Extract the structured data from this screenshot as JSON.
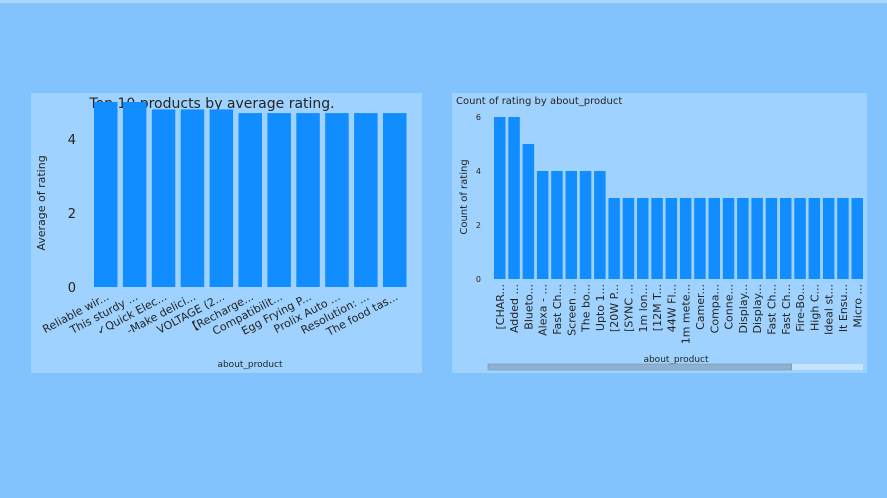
{
  "chart_data": [
    {
      "type": "bar",
      "title": "Top 10 products by average rating.",
      "xlabel": "about_product",
      "ylabel": "Average of rating",
      "ylim": [
        0,
        5
      ],
      "yticks": [
        "0",
        "2",
        "4"
      ],
      "categories": [
        "Reliable wir...",
        "This sturdy ...",
        "✓Quick Elec...",
        "-Make delici...",
        "VOLTAGE (2...",
        "【Recharge...",
        "Compatibilit...",
        "Egg Frying P...",
        "Prolix Auto ...",
        "Resolution: ...",
        "The food tas..."
      ],
      "values": [
        5.0,
        5.0,
        4.8,
        4.8,
        4.8,
        4.7,
        4.7,
        4.7,
        4.7,
        4.7,
        4.7
      ],
      "bar_color": "#118dff",
      "grid": false
    },
    {
      "type": "bar",
      "title": "Count of rating by about_product",
      "xlabel": "about_product",
      "ylabel": "Count of rating",
      "ylim": [
        0,
        6
      ],
      "yticks": [
        "0",
        "2",
        "4",
        "6"
      ],
      "categories": [
        "[CHAR...",
        "Added ...",
        "Blueto...",
        "Alexa - ...",
        "Fast Ch...",
        "Screen ...",
        "The bo...",
        "Upto 1...",
        "[20W P...",
        "[SYNC ...",
        "1m lon...",
        "[12M T...",
        "44W Fl...",
        "1m mete...",
        "Camer...",
        "Compa...",
        "Conne...",
        "Display...",
        "Display...",
        "Fast Ch...",
        "Fast Ch...",
        "Fire-Bo...",
        "High C...",
        "Ideal st...",
        "It Ensu...",
        "Micro ..."
      ],
      "values": [
        6,
        6,
        5,
        4,
        4,
        4,
        4,
        4,
        3,
        3,
        3,
        3,
        3,
        3,
        3,
        3,
        3,
        3,
        3,
        3,
        3,
        3,
        3,
        3,
        3,
        3
      ],
      "bar_color": "#118dff",
      "grid": false,
      "scroll_visible_fraction": 0.81
    }
  ]
}
